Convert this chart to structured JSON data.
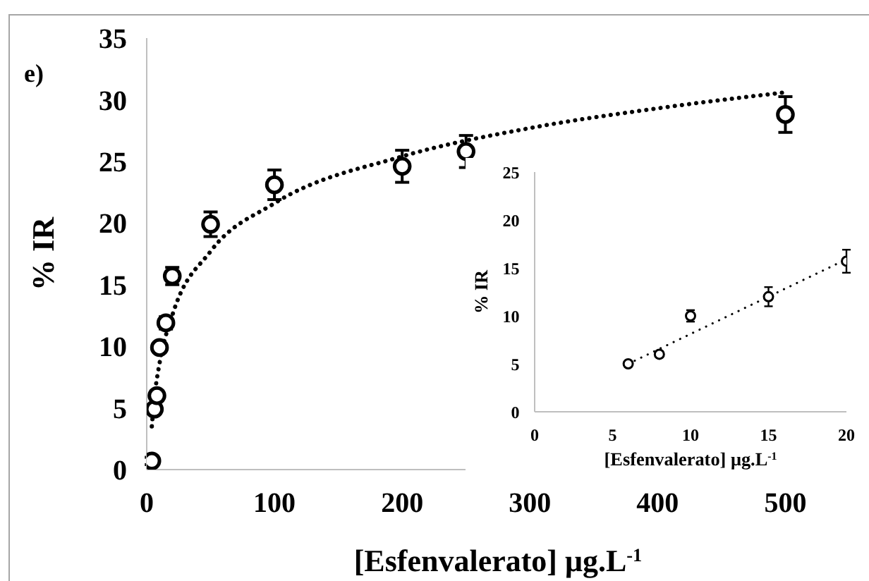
{
  "chart_data": [
    {
      "type": "scatter",
      "xlabel": "[Esfenvalerato] μg.L$^{-1}$",
      "ylabel": "% IR",
      "annotations": [
        "e)"
      ],
      "xlim": [
        0,
        550
      ],
      "xticks": [
        0,
        100,
        200,
        300,
        400,
        500
      ],
      "ylim": [
        0,
        35
      ],
      "yticks": [
        0,
        5,
        10,
        15,
        20,
        25,
        30,
        35
      ],
      "grid": false,
      "legend": false,
      "series": [
        {
          "color": "#000000",
          "marker": "circle",
          "x": [
            4,
            6,
            8,
            10,
            15,
            20,
            50,
            100,
            200,
            250,
            500
          ],
          "values": [
            0.7,
            4.9,
            6,
            9.9,
            11.9,
            15.7,
            19.9,
            23.1,
            24.6,
            25.8,
            28.8
          ],
          "errors": [
            0.3,
            0.3,
            0.4,
            0.4,
            0.5,
            0.7,
            1.0,
            1.2,
            1.3,
            1.3,
            1.45
          ]
        },
        {
          "type": "line",
          "color": "#000000",
          "marker": "none",
          "line_style": "dotted",
          "x": [
            4,
            6,
            10,
            20,
            50,
            100,
            200,
            300,
            400,
            500
          ],
          "values": [
            3.5,
            5.8,
            8.6,
            12.5,
            17.7,
            21.6,
            25.4,
            27.7,
            29.3,
            30.6
          ]
        }
      ]
    },
    {
      "type": "scatter",
      "xlabel": "[Esfenvalerato] μg.L$^{-1}$",
      "ylabel": "% IR",
      "xlim": [
        0,
        20
      ],
      "xticks": [
        0,
        5,
        10,
        15,
        20
      ],
      "ylim": [
        0,
        25
      ],
      "yticks": [
        0,
        5,
        10,
        15,
        20,
        25
      ],
      "grid": false,
      "legend": false,
      "series": [
        {
          "color": "#000000",
          "marker": "circle",
          "x": [
            6,
            8,
            10,
            15,
            20
          ],
          "values": [
            5,
            6,
            10,
            12,
            15.7
          ],
          "errors": [
            0.2,
            0.3,
            0.6,
            1.0,
            1.2
          ]
        },
        {
          "type": "line",
          "color": "#000000",
          "marker": "none",
          "line_style": "dotted",
          "x": [
            6,
            20
          ],
          "values": [
            5,
            15.9
          ]
        }
      ]
    }
  ]
}
